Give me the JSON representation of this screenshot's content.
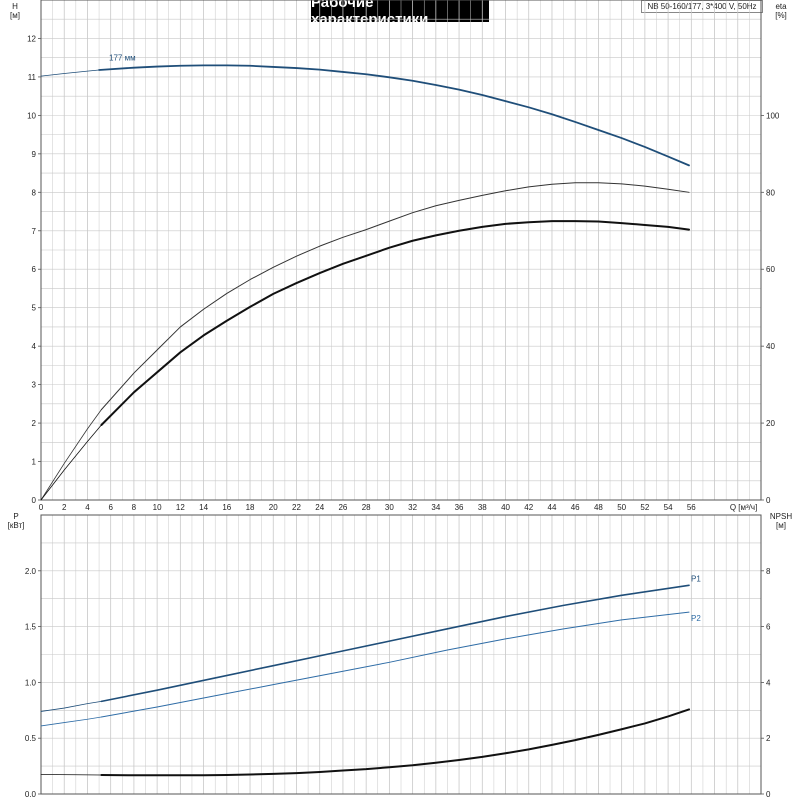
{
  "title": "Рабочие характеристики",
  "model": "NB 50-160/177, 3*400 V, 50Hz",
  "chart_data": [
    {
      "type": "line",
      "name": "top",
      "xlim": [
        0,
        62
      ],
      "ylim": [
        0,
        13
      ],
      "y2lim": [
        0,
        130
      ],
      "xticks": [
        0,
        2,
        4,
        6,
        8,
        10,
        12,
        14,
        16,
        18,
        20,
        22,
        24,
        26,
        28,
        30,
        32,
        34,
        36,
        38,
        40,
        42,
        44,
        46,
        48,
        50,
        52,
        54,
        56
      ],
      "yticks": [
        0,
        1,
        2,
        3,
        4,
        5,
        6,
        7,
        8,
        9,
        10,
        11,
        12
      ],
      "y2ticks": [
        0,
        20,
        40,
        60,
        80,
        100
      ],
      "xlabel": "Q [м³/ч]",
      "ylabel": {
        "name": "H",
        "unit": "[м]"
      },
      "y2label": {
        "name": "eta",
        "unit": "[%]"
      },
      "curve_label": "177 мм",
      "series": [
        {
          "key": "head_ext",
          "axis": "y",
          "color": "#1f4e79",
          "width": 0.8,
          "x": [
            0,
            2,
            4,
            5
          ],
          "y": [
            11.02,
            11.09,
            11.15,
            11.18
          ]
        },
        {
          "key": "head",
          "axis": "y",
          "color": "#1f4e79",
          "width": 1.8,
          "x": [
            5,
            8,
            10,
            12,
            14,
            16,
            18,
            20,
            22,
            24,
            26,
            28,
            30,
            32,
            34,
            36,
            38,
            40,
            42,
            44,
            46,
            48,
            50,
            52,
            54,
            55.8
          ],
          "y": [
            11.18,
            11.24,
            11.27,
            11.29,
            11.3,
            11.3,
            11.29,
            11.26,
            11.23,
            11.19,
            11.13,
            11.07,
            10.99,
            10.9,
            10.79,
            10.67,
            10.53,
            10.37,
            10.21,
            10.03,
            9.83,
            9.62,
            9.41,
            9.18,
            8.93,
            8.7
          ]
        },
        {
          "key": "eta1_ext",
          "axis": "y2",
          "color": "#333333",
          "width": 0.8,
          "x": [
            0,
            2,
            4,
            5.2
          ],
          "y": [
            0,
            9.5,
            18.5,
            23.5
          ]
        },
        {
          "key": "eta1",
          "axis": "y2",
          "color": "#333333",
          "width": 1.0,
          "x": [
            5.2,
            8,
            10,
            12,
            14,
            16,
            18,
            20,
            22,
            24,
            26,
            28,
            30,
            32,
            34,
            36,
            38,
            40,
            42,
            44,
            46,
            48,
            50,
            52,
            54,
            55.8
          ],
          "y": [
            23.5,
            33,
            39,
            45,
            49.6,
            53.7,
            57.3,
            60.5,
            63.4,
            66,
            68.3,
            70.3,
            72.5,
            74.7,
            76.5,
            77.9,
            79.2,
            80.4,
            81.4,
            82.1,
            82.5,
            82.5,
            82.2,
            81.6,
            80.8,
            80
          ]
        },
        {
          "key": "eta2_ext",
          "axis": "y2",
          "color": "#111111",
          "width": 0.8,
          "x": [
            0,
            2,
            4,
            5.2
          ],
          "y": [
            0,
            7.8,
            15.2,
            19.5
          ]
        },
        {
          "key": "eta2",
          "axis": "y2",
          "color": "#111111",
          "width": 2.0,
          "x": [
            5.2,
            8,
            10,
            12,
            14,
            16,
            18,
            20,
            22,
            24,
            26,
            28,
            30,
            32,
            34,
            36,
            38,
            40,
            42,
            44,
            46,
            48,
            50,
            52,
            54,
            55.8
          ],
          "y": [
            19.5,
            28,
            33.2,
            38.4,
            42.8,
            46.6,
            50.2,
            53.6,
            56.4,
            59,
            61.4,
            63.5,
            65.6,
            67.4,
            68.8,
            70,
            71,
            71.8,
            72.2,
            72.5,
            72.5,
            72.4,
            72,
            71.5,
            71,
            70.3
          ]
        }
      ]
    },
    {
      "type": "line",
      "name": "bottom",
      "xlim": [
        0,
        62
      ],
      "ylim": [
        0,
        2.5
      ],
      "y2lim": [
        0,
        10
      ],
      "yticks": [
        0.0,
        0.5,
        1.0,
        1.5,
        2.0
      ],
      "ytick_labels": [
        "0.0",
        "0.5",
        "1.0",
        "1.5",
        "2.0"
      ],
      "y2ticks": [
        0,
        2,
        4,
        6,
        8
      ],
      "ylabel": {
        "name": "P",
        "unit": "[кВт]"
      },
      "y2label": {
        "name": "NPSH",
        "unit": "[м]"
      },
      "series": [
        {
          "key": "p1_ext",
          "axis": "y",
          "color": "#1f4e79",
          "width": 0.8,
          "x": [
            0,
            2,
            4,
            5.2
          ],
          "y": [
            0.74,
            0.77,
            0.81,
            0.83
          ]
        },
        {
          "key": "p1",
          "axis": "y",
          "color": "#1f4e79",
          "width": 1.6,
          "label": "P1",
          "x": [
            5.2,
            10,
            15,
            20,
            25,
            30,
            35,
            40,
            45,
            50,
            55.8
          ],
          "y": [
            0.83,
            0.93,
            1.04,
            1.15,
            1.26,
            1.37,
            1.48,
            1.59,
            1.69,
            1.78,
            1.87
          ]
        },
        {
          "key": "p2_ext",
          "axis": "y",
          "color": "#2e6ca6",
          "width": 0.8,
          "x": [
            0,
            2,
            4,
            5.2
          ],
          "y": [
            0.61,
            0.64,
            0.67,
            0.69
          ]
        },
        {
          "key": "p2",
          "axis": "y",
          "color": "#2e6ca6",
          "width": 1.0,
          "label": "P2",
          "x": [
            5.2,
            10,
            15,
            20,
            25,
            30,
            35,
            40,
            45,
            50,
            55.8
          ],
          "y": [
            0.69,
            0.78,
            0.88,
            0.98,
            1.08,
            1.18,
            1.29,
            1.39,
            1.48,
            1.56,
            1.63
          ]
        },
        {
          "key": "npsh_ext",
          "axis": "y2",
          "color": "#111111",
          "width": 0.8,
          "x": [
            0,
            3,
            5.2
          ],
          "y": [
            0.7,
            0.69,
            0.68
          ]
        },
        {
          "key": "npsh",
          "axis": "y2",
          "color": "#111111",
          "width": 2.0,
          "x": [
            5.2,
            8,
            10,
            12,
            14,
            16,
            18,
            20,
            22,
            24,
            26,
            28,
            30,
            32,
            34,
            36,
            38,
            40,
            42,
            44,
            46,
            48,
            50,
            52,
            54,
            55.8
          ],
          "y": [
            0.68,
            0.67,
            0.67,
            0.67,
            0.67,
            0.68,
            0.7,
            0.72,
            0.75,
            0.79,
            0.84,
            0.89,
            0.96,
            1.03,
            1.12,
            1.22,
            1.33,
            1.46,
            1.6,
            1.76,
            1.93,
            2.12,
            2.32,
            2.53,
            2.78,
            3.03
          ]
        }
      ]
    }
  ]
}
